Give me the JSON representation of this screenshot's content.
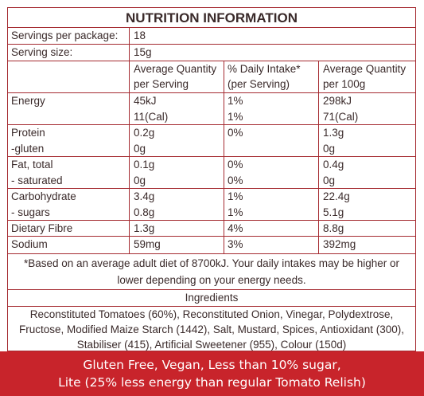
{
  "title": "NUTRITION INFORMATION",
  "servings": [
    {
      "label": "Servings per package:",
      "value": "18"
    },
    {
      "label": "Serving size:",
      "value": "15g"
    }
  ],
  "header": {
    "col2": [
      "Average Quantity",
      "per Serving"
    ],
    "col3": [
      "% Daily Intake*",
      "(per Serving)"
    ],
    "col4": [
      "Average Quantity",
      "per 100g"
    ]
  },
  "rows": [
    {
      "name": "Energy",
      "serving": "45kJ",
      "di": "1%",
      "per100": "298kJ"
    },
    {
      "name": "",
      "serving": "11(Cal)",
      "di": "1%",
      "per100": "71(Cal)"
    },
    {
      "name": "Protein",
      "serving": "0.2g",
      "di": "0%",
      "per100": "1.3g"
    },
    {
      "name": "-gluten",
      "serving": "0g",
      "di": "",
      "per100": "0g"
    },
    {
      "name": "Fat, total",
      "serving": "0.1g",
      "di": "0%",
      "per100": "0.4g"
    },
    {
      "name": "- saturated",
      "serving": "0g",
      "di": "0%",
      "per100": "0g"
    },
    {
      "name": "Carbohydrate",
      "serving": "3.4g",
      "di": "1%",
      "per100": "22.4g"
    },
    {
      "name": "- sugars",
      "serving": "0.8g",
      "di": "1%",
      "per100": "5.1g"
    },
    {
      "name": "Dietary Fibre",
      "serving": "1.3g",
      "di": "4%",
      "per100": "8.8g"
    },
    {
      "name": "Sodium",
      "serving": "59mg",
      "di": "3%",
      "per100": "392mg"
    }
  ],
  "footnote": [
    "*Based on an average adult diet of 8700kJ. Your daily intakes may be higher or",
    "lower depending on your energy needs."
  ],
  "ingredients_heading": "Ingredients",
  "ingredients": [
    "Reconstituted Tomatoes (60%), Reconstituted Onion, Vinegar, Polydextrose,",
    "Fructose, Modified Maize Starch (1442), Salt, Mustard, Spices, Antioxidant (300),",
    "Stabiliser (415), Artificial Sweetener (955), Colour (150d)"
  ],
  "banner": [
    "Gluten Free, Vegan, Less than 10% sugar,",
    "Lite (25% less energy than regular Tomato Relish)"
  ],
  "colors": {
    "border": "#a52b31",
    "banner_bg": "#c8242b",
    "text": "#3a2a2a"
  }
}
